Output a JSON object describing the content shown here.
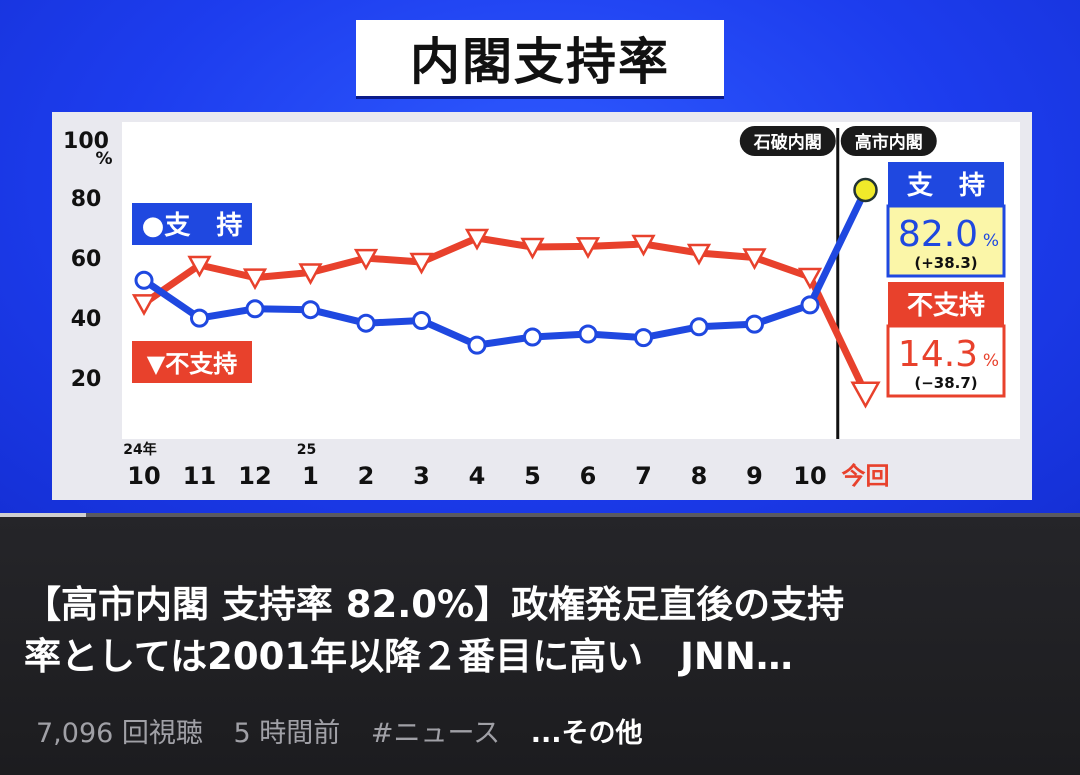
{
  "video": {
    "title": "内閣支持率",
    "progress": 0.08
  },
  "chart_data": {
    "type": "line",
    "y_ticks": [
      "100",
      "80",
      "60",
      "40",
      "20"
    ],
    "y_unit": "%",
    "ylim": [
      0,
      100
    ],
    "x_labels": [
      "10",
      "11",
      "12",
      "1",
      "2",
      "3",
      "4",
      "5",
      "6",
      "7",
      "8",
      "9",
      "10",
      "今回"
    ],
    "year_labels": [
      {
        "index": 0,
        "text": "24年"
      },
      {
        "index": 3,
        "text": "25"
      }
    ],
    "eras": [
      {
        "label": "石破内閣"
      },
      {
        "label": "高市内閣"
      }
    ],
    "series": [
      {
        "name": "支　持",
        "legend": "●支　持",
        "color": "#1f48e0",
        "values": [
          51.9,
          39.3,
          42.4,
          42.1,
          37.6,
          38.5,
          30.3,
          33.0,
          34.0,
          32.8,
          36.4,
          37.3,
          43.7,
          82.0
        ]
      },
      {
        "name": "不支持",
        "legend": "▼不支持",
        "color": "#e8412c",
        "values": [
          44.2,
          57.0,
          52.8,
          54.5,
          59.3,
          58.0,
          66.0,
          63.0,
          63.2,
          64.0,
          61.0,
          59.5,
          53.0,
          14.3
        ]
      }
    ],
    "callouts": [
      {
        "name": "支　持",
        "value": "82.0",
        "unit": "%",
        "change": "(+38.3)"
      },
      {
        "name": "不支持",
        "value": "14.3",
        "unit": "%",
        "change": "(−38.7)"
      }
    ]
  },
  "info": {
    "headline_line1": "【高市内閣 支持率 82.0%】政権発足直後の支持",
    "headline_line2": "率としては2001年以降２番目に高い　JNN…",
    "views": "7,096 回視聴",
    "time": "5 時間前",
    "hashtag": "#ニュース",
    "more": "...その他"
  }
}
